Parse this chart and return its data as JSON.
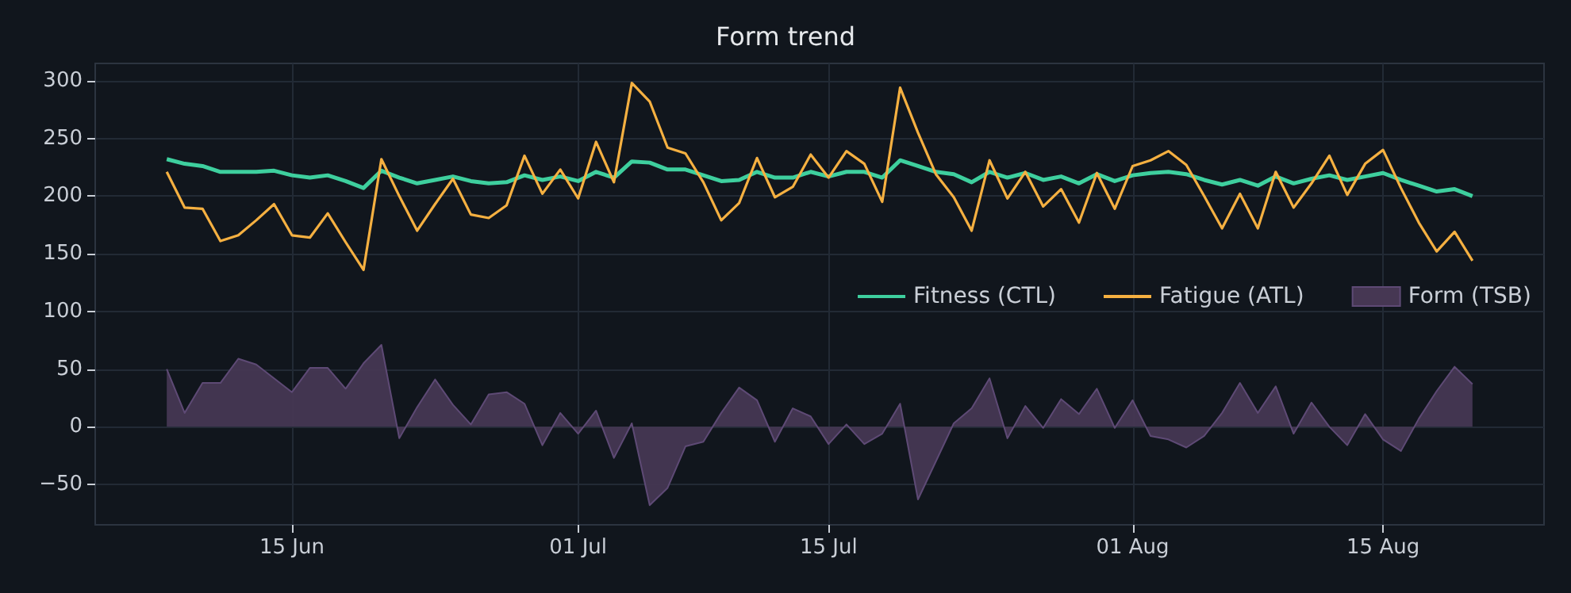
{
  "chart_data": {
    "type": "line",
    "title": "Form trend",
    "x": [
      "--06-08",
      "--06-09",
      "--06-10",
      "--06-11",
      "--06-12",
      "--06-13",
      "--06-14",
      "--06-15",
      "--06-16",
      "--06-17",
      "--06-18",
      "--06-19",
      "--06-20",
      "--06-21",
      "--06-22",
      "--06-23",
      "--06-24",
      "--06-25",
      "--06-26",
      "--06-27",
      "--06-28",
      "--06-29",
      "--06-30",
      "--07-01",
      "--07-02",
      "--07-03",
      "--07-04",
      "--07-05",
      "--07-06",
      "--07-07",
      "--07-08",
      "--07-09",
      "--07-10",
      "--07-11",
      "--07-12",
      "--07-13",
      "--07-14",
      "--07-15",
      "--07-16",
      "--07-17",
      "--07-18",
      "--07-19",
      "--07-20",
      "--07-21",
      "--07-22",
      "--07-23",
      "--07-24",
      "--07-25",
      "--07-26",
      "--07-27",
      "--07-28",
      "--07-29",
      "--07-30",
      "--07-31",
      "--08-01",
      "--08-02",
      "--08-03",
      "--08-04",
      "--08-05",
      "--08-06",
      "--08-07",
      "--08-08",
      "--08-09",
      "--08-10",
      "--08-11",
      "--08-12",
      "--08-13",
      "--08-14",
      "--08-15",
      "--08-16",
      "--08-17",
      "--08-18",
      "--08-19",
      "--08-20"
    ],
    "series": [
      {
        "name": "Fitness (CTL)",
        "color": "#3ecf9e",
        "values": [
          232,
          228,
          226,
          221,
          221,
          221,
          222,
          218,
          216,
          218,
          213,
          207,
          222,
          216,
          211,
          214,
          217,
          213,
          211,
          212,
          218,
          214,
          217,
          213,
          221,
          216,
          230,
          229,
          223,
          223,
          218,
          213,
          214,
          221,
          216,
          216,
          221,
          217,
          221,
          221,
          216,
          231,
          226,
          221,
          219,
          212,
          221,
          216,
          220,
          214,
          217,
          211,
          219,
          213,
          218,
          220,
          221,
          219,
          214,
          210,
          214,
          209,
          217,
          211,
          215,
          218,
          214,
          217,
          220,
          214,
          209,
          204,
          206,
          200
        ]
      },
      {
        "name": "Fatigue (ATL)",
        "color": "#f5b041",
        "values": [
          221,
          190,
          189,
          161,
          166,
          179,
          193,
          166,
          164,
          185,
          160,
          136,
          232,
          200,
          170,
          193,
          215,
          184,
          181,
          192,
          235,
          202,
          223,
          198,
          247,
          212,
          298,
          282,
          242,
          237,
          212,
          179,
          194,
          233,
          199,
          208,
          236,
          216,
          239,
          228,
          195,
          294,
          255,
          219,
          199,
          170,
          231,
          198,
          221,
          191,
          206,
          177,
          220,
          189,
          226,
          231,
          239,
          227,
          200,
          172,
          202,
          172,
          221,
          190,
          211,
          235,
          201,
          228,
          240,
          207,
          177,
          152,
          169,
          144
        ]
      },
      {
        "name": "Form (TSB)",
        "type": "area",
        "color": "#463753",
        "values": [
          50,
          12,
          38,
          38,
          59,
          54,
          42,
          30,
          51,
          51,
          33,
          55,
          71,
          -10,
          17,
          41,
          19,
          2,
          28,
          30,
          20,
          -16,
          12,
          -6,
          14,
          -27,
          3,
          -68,
          -53,
          -17,
          -13,
          12,
          34,
          23,
          -13,
          16,
          9,
          -15,
          2,
          -15,
          -6,
          20,
          -63,
          -30,
          3,
          16,
          42,
          -10,
          18,
          -1,
          24,
          11,
          33,
          -1,
          23,
          -8,
          -11,
          -18,
          -8,
          12,
          38,
          12,
          35,
          -6,
          21,
          0,
          -16,
          11,
          -11,
          -21,
          7,
          31,
          52,
          37
        ]
      }
    ],
    "xlim": [
      "--06-04",
      "--08-24"
    ],
    "xticks": [
      {
        "value": "--06-15",
        "label": "15 Jun"
      },
      {
        "value": "--07-01",
        "label": "01 Jul"
      },
      {
        "value": "--07-15",
        "label": "15 Jul"
      },
      {
        "value": "--08-01",
        "label": "01 Aug"
      },
      {
        "value": "--08-15",
        "label": "15 Aug"
      }
    ],
    "ylim": [
      -85,
      315
    ],
    "yticks": [
      -50,
      0,
      50,
      100,
      150,
      200,
      250,
      300
    ],
    "grid": true,
    "legend": "right",
    "marker": "none",
    "line_style": "solid"
  }
}
